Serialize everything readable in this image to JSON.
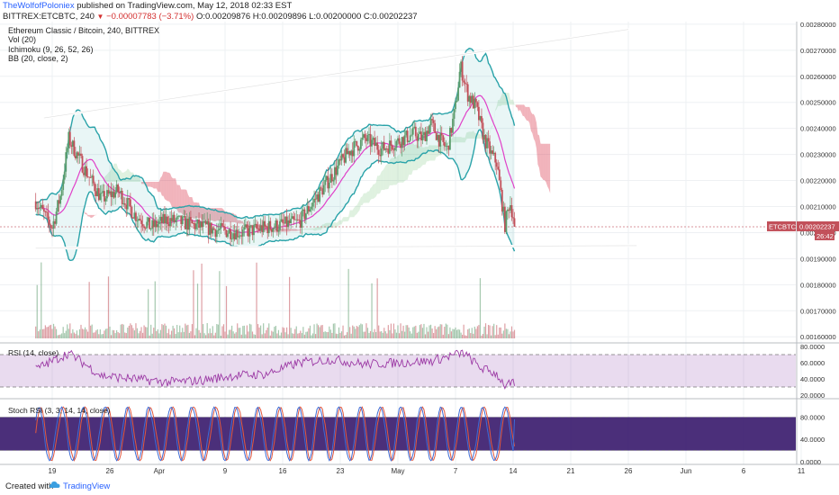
{
  "header": {
    "author": "TheWolfofPoloniex",
    "published_text": "published on TradingView.com, May 12, 2018 02:33 EST",
    "symbol_info": "BITTREX:ETCBTC, 240",
    "change_text": "−0.00007783 (−3.71%)",
    "ohlc_text": "O:0.00209876 H:0.00209896 L:0.00200000 C:0.00202237"
  },
  "legend": {
    "title": "Ethereum Classic / Bitcoin, 240, BITTREX",
    "items": [
      "Vol (20)",
      "Ichimoku (9, 26, 52, 26)",
      "BB (20, close, 2)"
    ]
  },
  "colors": {
    "up": "#5b9b6b",
    "down": "#c2505a",
    "bb": "#2aa3a9",
    "bb_mid": "#e040c8",
    "cloud": "#d7263d",
    "rsi": "#9c3aa5",
    "stoch_k": "#3d6bd6",
    "stoch_d": "#e2583e",
    "purple_band": "#2b0a63",
    "trendline": "#ffffff"
  },
  "chart_data": [
    {
      "type": "candlestick",
      "symbol": "ETCBTC",
      "y_ticks": [
        "0.00280000",
        "0.00270000",
        "0.00260000",
        "0.00250000",
        "0.00240000",
        "0.00230000",
        "0.00220000",
        "0.00210000",
        "0.00200000",
        "0.00190000",
        "0.00180000",
        "0.00170000",
        "0.00160000"
      ],
      "ylim": [
        0.00158,
        0.00281
      ],
      "x_ticks": [
        "19",
        "26",
        "Apr",
        "9",
        "16",
        "23",
        "May",
        "7",
        "14",
        "21",
        "26",
        "Jun",
        "6",
        "11"
      ],
      "x_tick_units": [
        0,
        7,
        13,
        21,
        28,
        35,
        42,
        49,
        56,
        63,
        70,
        77,
        84,
        91
      ],
      "ohlc_anchors": [
        [
          -2,
          0.00212
        ],
        [
          0,
          0.00202
        ],
        [
          1,
          0.00214
        ],
        [
          2,
          0.00236
        ],
        [
          4,
          0.00224
        ],
        [
          6,
          0.00213
        ],
        [
          8,
          0.00216
        ],
        [
          10,
          0.00207
        ],
        [
          12,
          0.00202
        ],
        [
          14,
          0.00205
        ],
        [
          17,
          0.00203
        ],
        [
          20,
          0.00201
        ],
        [
          23,
          0.002
        ],
        [
          26,
          0.00202
        ],
        [
          28,
          0.00203
        ],
        [
          30,
          0.00204
        ],
        [
          32,
          0.00213
        ],
        [
          34,
          0.00222
        ],
        [
          36,
          0.00231
        ],
        [
          38,
          0.00236
        ],
        [
          40,
          0.00232
        ],
        [
          42,
          0.00235
        ],
        [
          44,
          0.00238
        ],
        [
          45,
          0.00236
        ],
        [
          46,
          0.00242
        ],
        [
          47,
          0.00236
        ],
        [
          48,
          0.00232
        ],
        [
          49,
          0.00248
        ],
        [
          49.6,
          0.00264
        ],
        [
          50.5,
          0.00253
        ],
        [
          51.5,
          0.00248
        ],
        [
          52.5,
          0.00236
        ],
        [
          53.5,
          0.00229
        ],
        [
          54,
          0.00227
        ],
        [
          55,
          0.00203
        ],
        [
          55.6,
          0.00212
        ],
        [
          56.3,
          0.00202
        ]
      ],
      "last_price_label": "ETCBTC",
      "last_price": "0.00202237",
      "countdown": "26:42",
      "trendlines": [
        {
          "from": [
            -1,
            0.00244
          ],
          "to": [
            70,
            0.00278
          ]
        },
        {
          "from": [
            -2,
            0.00194
          ],
          "to": [
            71,
            0.00195
          ]
        }
      ]
    },
    {
      "type": "bar",
      "name": "Vol (20)",
      "note": "volume histogram in lower part of main pane"
    },
    {
      "type": "line",
      "name": "RSI (14, close)",
      "label": "RSI (14, close)",
      "y_ticks": [
        "80.0000",
        "60.0000",
        "40.0000",
        "20.0000"
      ],
      "ylim": [
        20,
        80
      ],
      "bands": [
        30,
        70
      ],
      "anchors": [
        [
          -2,
          52
        ],
        [
          2,
          72
        ],
        [
          6,
          44
        ],
        [
          10,
          40
        ],
        [
          14,
          36
        ],
        [
          18,
          38
        ],
        [
          22,
          44
        ],
        [
          26,
          46
        ],
        [
          30,
          60
        ],
        [
          34,
          64
        ],
        [
          38,
          58
        ],
        [
          42,
          60
        ],
        [
          46,
          62
        ],
        [
          49,
          70
        ],
        [
          50,
          72
        ],
        [
          52,
          54
        ],
        [
          54,
          46
        ],
        [
          55,
          32
        ],
        [
          56,
          34
        ],
        [
          56.3,
          30
        ]
      ]
    },
    {
      "type": "line",
      "name": "Stoch RSI (3, 3, 14, 14, close)",
      "label": "Stoch RSI (3, 3, 14, 14, close)",
      "y_ticks": [
        "80.0000",
        "40.0000",
        "0.0000"
      ],
      "ylim": [
        0,
        100
      ],
      "bands": [
        20,
        80
      ],
      "last_k": 76
    }
  ]
}
